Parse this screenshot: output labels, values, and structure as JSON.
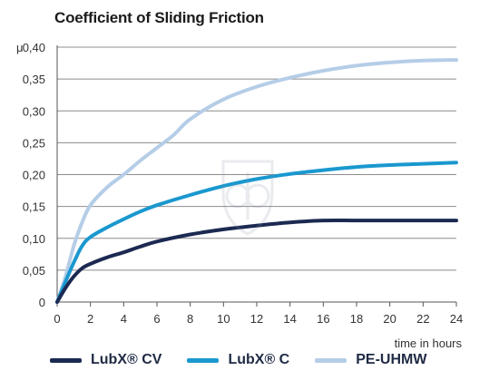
{
  "chart_data": {
    "type": "line",
    "title": "Coefficient of Sliding Friction",
    "ylabel": "μ",
    "xlabel": "time in hours",
    "xlim": [
      0,
      24
    ],
    "ylim": [
      0,
      0.4
    ],
    "x_ticks": [
      "0",
      "2",
      "4",
      "6",
      "8",
      "10",
      "12",
      "14",
      "16",
      "18",
      "20",
      "22",
      "24"
    ],
    "y_ticks": [
      "0",
      "0,05",
      "0,10",
      "0,15",
      "0,20",
      "0,25",
      "0,30",
      "0,35",
      "0,40"
    ],
    "grid": true,
    "legend_position": "bottom",
    "series": [
      {
        "name": "LubX® CV",
        "color": "#1c2a52",
        "x": [
          0,
          0.5,
          1,
          1.5,
          2,
          3,
          4,
          5,
          6,
          8,
          10,
          12,
          14,
          16,
          18,
          20,
          22,
          24
        ],
        "values": [
          0,
          0.022,
          0.04,
          0.053,
          0.06,
          0.07,
          0.078,
          0.087,
          0.095,
          0.106,
          0.114,
          0.12,
          0.125,
          0.128,
          0.128,
          0.128,
          0.128,
          0.128
        ]
      },
      {
        "name": "LubX® C",
        "color": "#1a98cf",
        "x": [
          0,
          0.5,
          1,
          1.5,
          2,
          3,
          4,
          5,
          6,
          8,
          10,
          12,
          14,
          16,
          18,
          20,
          22,
          24
        ],
        "values": [
          0,
          0.032,
          0.062,
          0.088,
          0.102,
          0.117,
          0.13,
          0.142,
          0.152,
          0.168,
          0.182,
          0.193,
          0.201,
          0.207,
          0.212,
          0.215,
          0.217,
          0.219
        ]
      },
      {
        "name": "PE-UHMW",
        "color": "#b5cde7",
        "x": [
          0,
          0.5,
          1,
          1.5,
          2,
          3,
          4,
          5,
          6,
          7,
          8,
          10,
          12,
          14,
          16,
          18,
          20,
          22,
          24
        ],
        "values": [
          0,
          0.04,
          0.088,
          0.125,
          0.152,
          0.18,
          0.2,
          0.222,
          0.242,
          0.262,
          0.287,
          0.318,
          0.338,
          0.352,
          0.363,
          0.371,
          0.376,
          0.379,
          0.38
        ]
      }
    ]
  }
}
